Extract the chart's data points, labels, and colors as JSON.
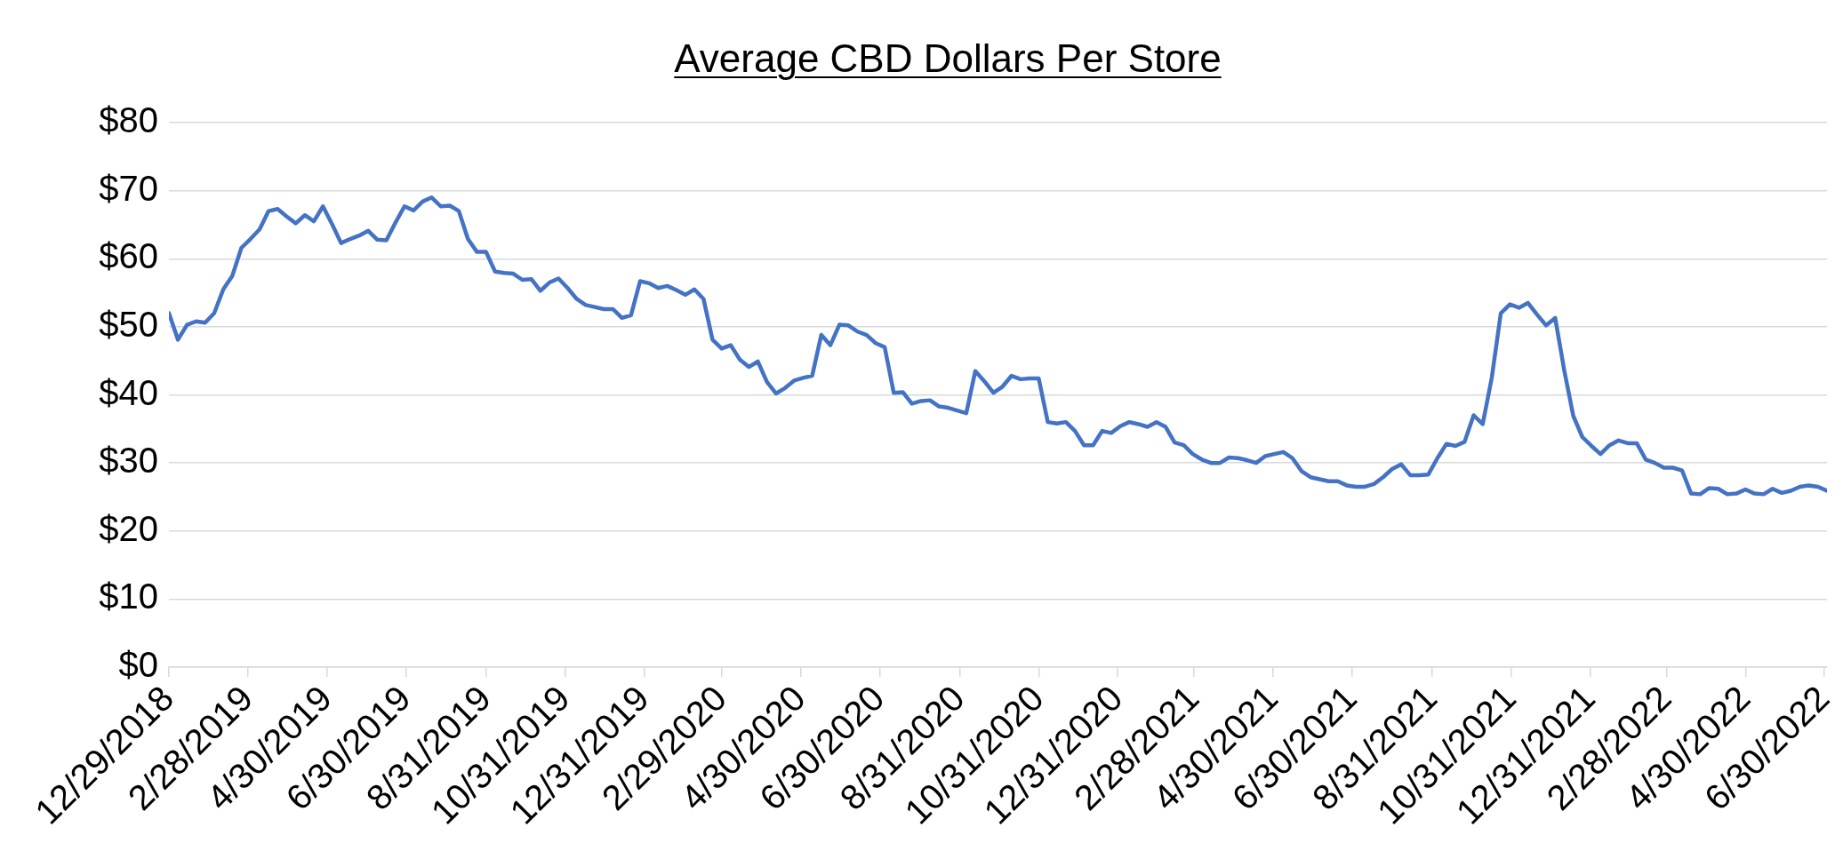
{
  "chart_data": {
    "type": "line",
    "title": "Average CBD Dollars Per Store",
    "x": [
      "2018-12-29",
      "2019-01-05",
      "2019-01-12",
      "2019-01-19",
      "2019-01-26",
      "2019-02-02",
      "2019-02-09",
      "2019-02-16",
      "2019-02-23",
      "2019-03-02",
      "2019-03-09",
      "2019-03-16",
      "2019-03-23",
      "2019-03-30",
      "2019-04-06",
      "2019-04-13",
      "2019-04-20",
      "2019-04-27",
      "2019-05-04",
      "2019-05-11",
      "2019-05-18",
      "2019-05-25",
      "2019-06-01",
      "2019-06-08",
      "2019-06-15",
      "2019-06-22",
      "2019-06-29",
      "2019-07-06",
      "2019-07-13",
      "2019-07-20",
      "2019-07-27",
      "2019-08-03",
      "2019-08-10",
      "2019-08-17",
      "2019-08-24",
      "2019-08-31",
      "2019-09-07",
      "2019-09-14",
      "2019-09-21",
      "2019-09-28",
      "2019-10-05",
      "2019-10-12",
      "2019-10-19",
      "2019-10-26",
      "2019-11-02",
      "2019-11-09",
      "2019-11-16",
      "2019-11-23",
      "2019-11-30",
      "2019-12-07",
      "2019-12-14",
      "2019-12-21",
      "2019-12-28",
      "2020-01-04",
      "2020-01-11",
      "2020-01-18",
      "2020-01-25",
      "2020-02-01",
      "2020-02-08",
      "2020-02-15",
      "2020-02-22",
      "2020-02-29",
      "2020-03-07",
      "2020-03-14",
      "2020-03-21",
      "2020-03-28",
      "2020-04-04",
      "2020-04-11",
      "2020-04-18",
      "2020-04-25",
      "2020-05-02",
      "2020-05-09",
      "2020-05-16",
      "2020-05-23",
      "2020-05-30",
      "2020-06-06",
      "2020-06-13",
      "2020-06-20",
      "2020-06-27",
      "2020-07-04",
      "2020-07-11",
      "2020-07-18",
      "2020-07-25",
      "2020-08-01",
      "2020-08-08",
      "2020-08-15",
      "2020-08-22",
      "2020-08-29",
      "2020-09-05",
      "2020-09-12",
      "2020-09-19",
      "2020-09-26",
      "2020-10-03",
      "2020-10-10",
      "2020-10-17",
      "2020-10-24",
      "2020-10-31",
      "2020-11-07",
      "2020-11-14",
      "2020-11-21",
      "2020-11-28",
      "2020-12-05",
      "2020-12-12",
      "2020-12-19",
      "2020-12-26",
      "2021-01-02",
      "2021-01-09",
      "2021-01-16",
      "2021-01-23",
      "2021-01-30",
      "2021-02-06",
      "2021-02-13",
      "2021-02-20",
      "2021-02-27",
      "2021-03-06",
      "2021-03-13",
      "2021-03-20",
      "2021-03-27",
      "2021-04-03",
      "2021-04-10",
      "2021-04-17",
      "2021-04-24",
      "2021-05-01",
      "2021-05-08",
      "2021-05-15",
      "2021-05-22",
      "2021-05-29",
      "2021-06-05",
      "2021-06-12",
      "2021-06-19",
      "2021-06-26",
      "2021-07-03",
      "2021-07-10",
      "2021-07-17",
      "2021-07-24",
      "2021-07-31",
      "2021-08-07",
      "2021-08-14",
      "2021-08-21",
      "2021-08-28",
      "2021-09-04",
      "2021-09-11",
      "2021-09-18",
      "2021-09-25",
      "2021-10-02",
      "2021-10-09",
      "2021-10-16",
      "2021-10-23",
      "2021-10-30",
      "2021-11-06",
      "2021-11-13",
      "2021-11-20",
      "2021-11-27",
      "2021-12-04",
      "2021-12-11",
      "2021-12-18",
      "2021-12-25",
      "2022-01-01",
      "2022-01-08",
      "2022-01-15",
      "2022-01-22",
      "2022-01-29",
      "2022-02-05",
      "2022-02-12",
      "2022-02-19",
      "2022-02-26",
      "2022-03-05",
      "2022-03-12",
      "2022-03-19",
      "2022-03-26",
      "2022-04-02",
      "2022-04-09",
      "2022-04-16",
      "2022-04-23",
      "2022-04-30",
      "2022-05-07",
      "2022-05-14",
      "2022-05-21",
      "2022-05-28",
      "2022-06-04",
      "2022-06-11",
      "2022-06-18",
      "2022-06-25",
      "2022-07-02"
    ],
    "series": [
      {
        "color": "#4472c4",
        "values": [
          52.0,
          48.1,
          50.3,
          50.8,
          50.6,
          52.0,
          55.5,
          57.5,
          61.6,
          62.9,
          64.3,
          67.0,
          67.3,
          66.2,
          65.2,
          66.4,
          65.5,
          67.7,
          65.1,
          62.3,
          62.9,
          63.4,
          64.1,
          62.8,
          62.7,
          65.3,
          67.7,
          67.1,
          68.4,
          69.0,
          67.7,
          67.8,
          67.0,
          62.9,
          61.0,
          61.0,
          58.1,
          57.9,
          57.8,
          56.9,
          57.0,
          55.3,
          56.5,
          57.1,
          55.7,
          54.1,
          53.2,
          52.9,
          52.6,
          52.6,
          51.3,
          51.7,
          56.7,
          56.4,
          55.7,
          56.0,
          55.4,
          54.7,
          55.5,
          54.1,
          48.1,
          46.8,
          47.3,
          45.2,
          44.1,
          44.9,
          41.9,
          40.2,
          41.0,
          42.1,
          42.5,
          42.8,
          48.8,
          47.3,
          50.3,
          50.2,
          49.3,
          48.8,
          47.6,
          47.0,
          40.3,
          40.4,
          38.7,
          39.1,
          39.2,
          38.3,
          38.1,
          37.7,
          37.3,
          43.5,
          42.0,
          40.3,
          41.2,
          42.8,
          42.3,
          42.4,
          42.4,
          36.0,
          35.8,
          36.0,
          34.7,
          32.6,
          32.6,
          34.7,
          34.4,
          35.4,
          36.0,
          35.7,
          35.3,
          36.0,
          35.3,
          33.0,
          32.6,
          31.3,
          30.5,
          30.0,
          30.0,
          30.8,
          30.7,
          30.4,
          30.0,
          31.0,
          31.3,
          31.6,
          30.7,
          28.8,
          27.9,
          27.6,
          27.3,
          27.3,
          26.7,
          26.5,
          26.5,
          26.9,
          27.9,
          29.1,
          29.8,
          28.2,
          28.2,
          28.3,
          30.7,
          32.8,
          32.5,
          33.1,
          37.0,
          35.7,
          42.5,
          52.0,
          53.3,
          52.8,
          53.5,
          51.8,
          50.2,
          51.3,
          43.6,
          36.9,
          33.8,
          32.5,
          31.3,
          32.6,
          33.3,
          32.9,
          32.9,
          30.5,
          30.0,
          29.3,
          29.3,
          28.9,
          25.5,
          25.4,
          26.3,
          26.2,
          25.4,
          25.5,
          26.1,
          25.5,
          25.4,
          26.2,
          25.6,
          25.9,
          26.5,
          26.7,
          26.5,
          25.9
        ]
      }
    ],
    "xlim": [
      "2018-12-29",
      "2022-07-02"
    ],
    "xticks": [
      {
        "value": "2018-12-29",
        "label": "12/29/2018"
      },
      {
        "value": "2019-02-28",
        "label": "2/28/2019"
      },
      {
        "value": "2019-04-30",
        "label": "4/30/2019"
      },
      {
        "value": "2019-06-30",
        "label": "6/30/2019"
      },
      {
        "value": "2019-08-31",
        "label": "8/31/2019"
      },
      {
        "value": "2019-10-31",
        "label": "10/31/2019"
      },
      {
        "value": "2019-12-31",
        "label": "12/31/2019"
      },
      {
        "value": "2020-02-29",
        "label": "2/29/2020"
      },
      {
        "value": "2020-04-30",
        "label": "4/30/2020"
      },
      {
        "value": "2020-06-30",
        "label": "6/30/2020"
      },
      {
        "value": "2020-08-31",
        "label": "8/31/2020"
      },
      {
        "value": "2020-10-31",
        "label": "10/31/2020"
      },
      {
        "value": "2020-12-31",
        "label": "12/31/2020"
      },
      {
        "value": "2021-02-28",
        "label": "2/28/2021"
      },
      {
        "value": "2021-04-30",
        "label": "4/30/2021"
      },
      {
        "value": "2021-06-30",
        "label": "6/30/2021"
      },
      {
        "value": "2021-08-31",
        "label": "8/31/2021"
      },
      {
        "value": "2021-10-31",
        "label": "10/31/2021"
      },
      {
        "value": "2021-12-31",
        "label": "12/31/2021"
      },
      {
        "value": "2022-02-28",
        "label": "2/28/2022"
      },
      {
        "value": "2022-04-30",
        "label": "4/30/2022"
      },
      {
        "value": "2022-06-30",
        "label": "6/30/2022"
      }
    ],
    "ylim": [
      0,
      80
    ],
    "yticks": [
      {
        "value": 0,
        "label": "$0"
      },
      {
        "value": 10,
        "label": "$10"
      },
      {
        "value": 20,
        "label": "$20"
      },
      {
        "value": 30,
        "label": "$30"
      },
      {
        "value": 40,
        "label": "$40"
      },
      {
        "value": 50,
        "label": "$50"
      },
      {
        "value": 60,
        "label": "$60"
      },
      {
        "value": 70,
        "label": "$70"
      },
      {
        "value": 80,
        "label": "$80"
      }
    ],
    "grid": "y"
  }
}
